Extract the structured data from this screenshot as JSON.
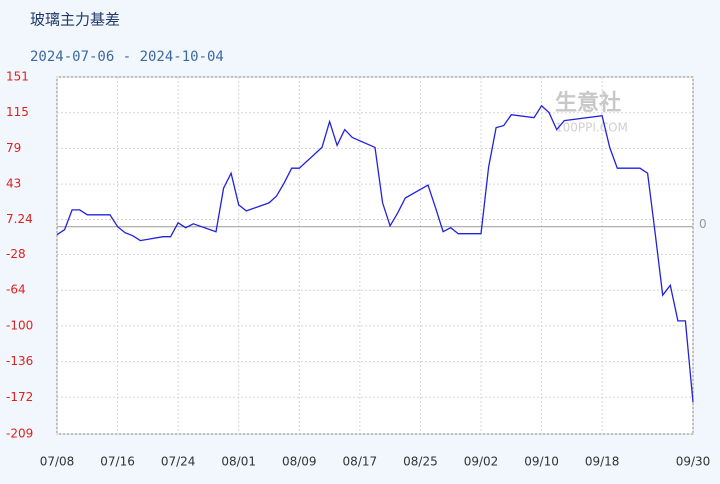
{
  "chart_data": {
    "type": "line",
    "title": "玻璃主力基差",
    "subtitle": "2024-07-06 - 2024-10-04",
    "watermark": [
      "生意社",
      "100PPI.COM"
    ],
    "x": [
      "07/08",
      "07/09",
      "07/10",
      "07/11",
      "07/12",
      "07/15",
      "07/16",
      "07/17",
      "07/18",
      "07/19",
      "07/22",
      "07/23",
      "07/24",
      "07/25",
      "07/26",
      "07/29",
      "07/30",
      "07/31",
      "08/01",
      "08/02",
      "08/05",
      "08/06",
      "08/07",
      "08/08",
      "08/09",
      "08/12",
      "08/13",
      "08/14",
      "08/15",
      "08/16",
      "08/19",
      "08/20",
      "08/21",
      "08/22",
      "08/23",
      "08/26",
      "08/27",
      "08/28",
      "08/29",
      "08/30",
      "09/02",
      "09/03",
      "09/04",
      "09/05",
      "09/06",
      "09/09",
      "09/10",
      "09/11",
      "09/12",
      "09/13",
      "09/18",
      "09/19",
      "09/20",
      "09/23",
      "09/24",
      "09/25",
      "09/26",
      "09/27",
      "09/28",
      "09/29",
      "09/30"
    ],
    "series": [
      {
        "name": "玻璃主力基差",
        "color": "#2222dd",
        "values": [
          -8,
          -3,
          17,
          17,
          12,
          12,
          0,
          -6,
          -9,
          -14,
          -10,
          -10,
          4,
          -1,
          3,
          -5,
          39,
          54,
          22,
          16,
          24,
          31,
          44,
          59,
          59,
          80,
          106,
          82,
          98,
          90,
          80,
          24,
          1,
          14,
          29,
          42,
          19,
          -5,
          -1,
          -7,
          -7,
          60,
          100,
          102,
          113,
          110,
          122,
          115,
          98,
          107,
          112,
          80,
          59,
          59,
          54,
          -6,
          -69,
          -59,
          -95,
          -95,
          -177
        ]
      }
    ],
    "xlim": [
      "07/08",
      "09/30"
    ],
    "xticks": [
      "07/08",
      "07/16",
      "07/24",
      "08/01",
      "08/09",
      "08/17",
      "08/25",
      "09/02",
      "09/10",
      "09/18",
      "09/30"
    ],
    "ylim": [
      -209,
      151
    ],
    "yticks": [
      151,
      115,
      79,
      43,
      7.24,
      -28,
      -64,
      -100,
      -136,
      -172,
      -209
    ],
    "reference_line": 0,
    "grid": true
  }
}
